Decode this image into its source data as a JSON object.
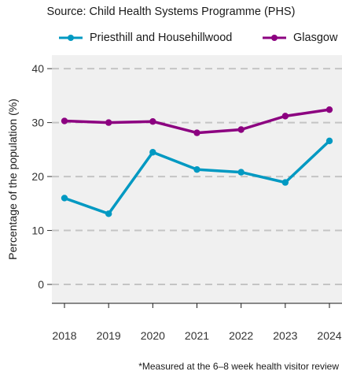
{
  "header": {
    "source_text": "Source: Child Health Systems Programme (PHS)"
  },
  "footnote": "*Measured at the 6–8 week health visitor review",
  "chart_data": {
    "type": "line",
    "title": "",
    "subtitle": "Source: Child Health Systems Programme (PHS)",
    "xlabel": "",
    "ylabel": "Percentage of the population (%)",
    "x": [
      "2018",
      "2019",
      "2020",
      "2021",
      "2022",
      "2023",
      "2024"
    ],
    "yticks": [
      0,
      10,
      20,
      30,
      40
    ],
    "ylim": [
      -3.5,
      42.5
    ],
    "grid": "horizontal dashed",
    "legend_position": "top",
    "series": [
      {
        "name": "Priesthill and Househillwood",
        "color": "#0099c2",
        "values": [
          16.0,
          13.1,
          24.5,
          21.3,
          20.8,
          18.9,
          26.6
        ]
      },
      {
        "name": "Glasgow",
        "color": "#8c0080",
        "values": [
          30.3,
          30.0,
          30.2,
          28.1,
          28.7,
          31.2,
          32.4
        ]
      }
    ]
  }
}
